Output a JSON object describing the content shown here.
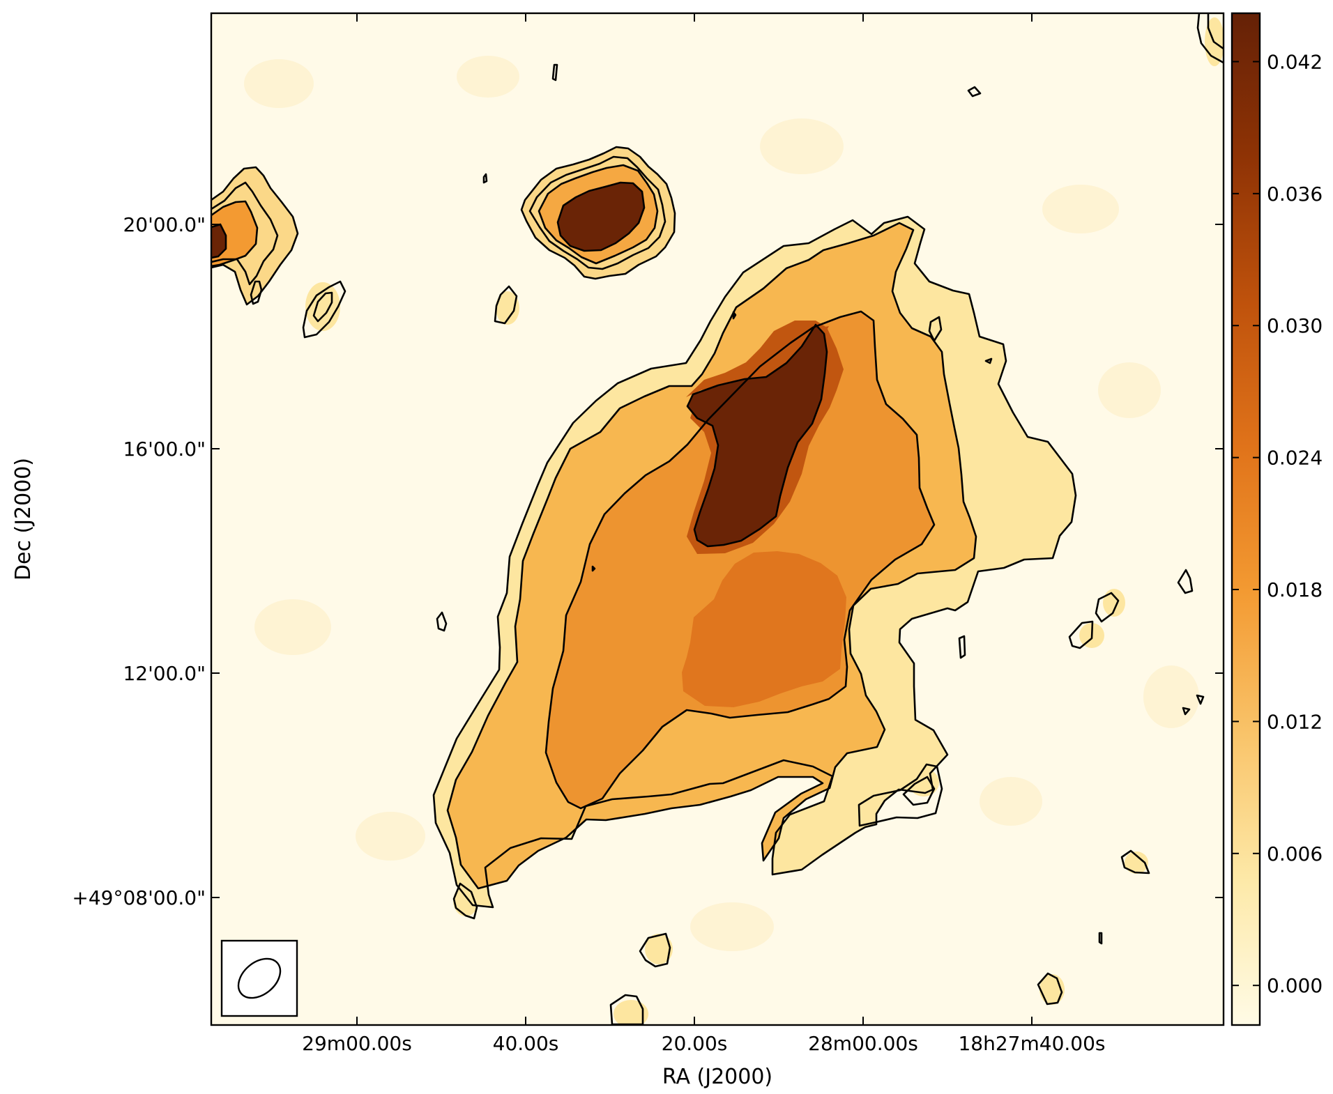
{
  "chart_data": {
    "type": "heatmap",
    "title": "",
    "xlabel": "RA (J2000)",
    "ylabel": "Dec (J2000)",
    "x_ticks": [
      "29m00.00s",
      "40.00s",
      "20.00s",
      "28m00.00s",
      "18h27m40.00s"
    ],
    "y_ticks": [
      "+49°08'00.0\"",
      "12'00.0\"",
      "16'00.0\"",
      "20'00.0\""
    ],
    "colorbar": {
      "colormap": "YlOrBr",
      "range": [
        -0.0018,
        0.0442
      ],
      "ticks": [
        "0.000",
        "0.006",
        "0.012",
        "0.018",
        "0.024",
        "0.030",
        "0.036",
        "0.042"
      ],
      "tick_values": [
        0.0,
        0.006,
        0.012,
        0.018,
        0.024,
        0.03,
        0.036,
        0.042
      ],
      "colors": [
        "#fffbe6",
        "#fde9a8",
        "#f9c46a",
        "#f39a32",
        "#e0731a",
        "#bf520c",
        "#8f3305",
        "#652106"
      ]
    },
    "contours": {
      "line_color": "#000000",
      "level_count": 4
    },
    "grid": false,
    "legend": "none"
  }
}
